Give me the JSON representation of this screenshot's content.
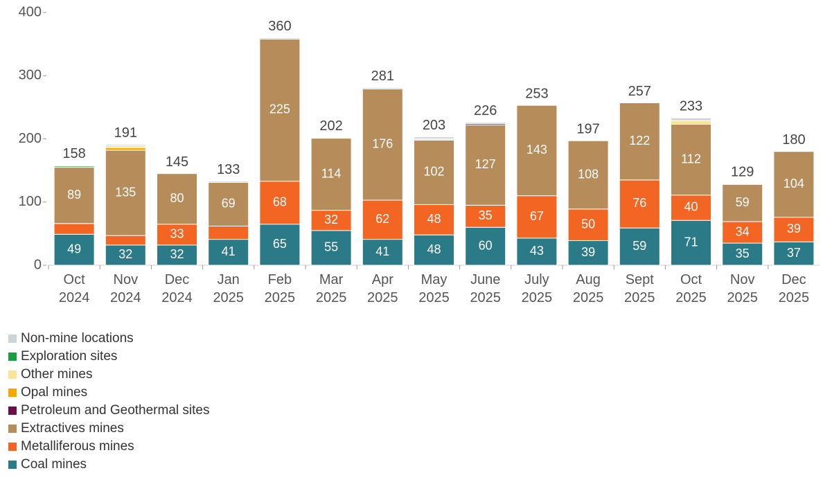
{
  "chart_data": {
    "type": "stacked_bar",
    "categories": [
      [
        "Oct",
        "2024"
      ],
      [
        "Nov",
        "2024"
      ],
      [
        "Dec",
        "2024"
      ],
      [
        "Jan",
        "2025"
      ],
      [
        "Feb",
        "2025"
      ],
      [
        "Mar",
        "2025"
      ],
      [
        "Apr",
        "2025"
      ],
      [
        "May",
        "2025"
      ],
      [
        "June",
        "2025"
      ],
      [
        "July",
        "2025"
      ],
      [
        "Aug",
        "2025"
      ],
      [
        "Sept",
        "2025"
      ],
      [
        "Oct",
        "2025"
      ],
      [
        "Nov",
        "2025"
      ],
      [
        "Dec",
        "2025"
      ]
    ],
    "series": [
      {
        "name": "Coal mines",
        "color": "#2b7a87",
        "values": [
          49,
          32,
          32,
          41,
          65,
          55,
          41,
          48,
          60,
          43,
          39,
          59,
          71,
          35,
          37
        ]
      },
      {
        "name": "Metalliferous mines",
        "color": "#f26522",
        "values": [
          17,
          15,
          33,
          21,
          68,
          32,
          62,
          48,
          35,
          67,
          50,
          76,
          40,
          34,
          39
        ]
      },
      {
        "name": "Extractives mines",
        "color": "#b58c5a",
        "values": [
          89,
          135,
          80,
          69,
          225,
          114,
          176,
          102,
          127,
          143,
          108,
          122,
          112,
          59,
          104
        ]
      },
      {
        "name": "Petroleum and Geothermal sites",
        "color": "#6b0f4a",
        "values": [
          0,
          0,
          0,
          0,
          0,
          0,
          0,
          0,
          2,
          0,
          0,
          0,
          0,
          0,
          0
        ]
      },
      {
        "name": "Opal mines",
        "color": "#f5a800",
        "values": [
          0,
          4,
          0,
          0,
          0,
          0,
          0,
          0,
          0,
          0,
          0,
          0,
          0,
          0,
          0
        ]
      },
      {
        "name": "Other mines",
        "color": "#fbe49a",
        "values": [
          0,
          3,
          0,
          0,
          0,
          0,
          0,
          2,
          0,
          0,
          0,
          0,
          6,
          0,
          0
        ]
      },
      {
        "name": "Exploration sites",
        "color": "#1a9e3f",
        "values": [
          2,
          0,
          0,
          0,
          0,
          0,
          0,
          0,
          0,
          0,
          0,
          0,
          0,
          0,
          0
        ]
      },
      {
        "name": "Non-mine locations",
        "color": "#ccd3d9",
        "values": [
          1,
          2,
          0,
          2,
          2,
          1,
          2,
          3,
          2,
          0,
          0,
          0,
          4,
          1,
          0
        ]
      }
    ],
    "totals": [
      158,
      191,
      145,
      133,
      360,
      202,
      281,
      203,
      226,
      253,
      197,
      257,
      233,
      129,
      180
    ],
    "ylim": [
      0,
      400
    ],
    "yticks": [
      0,
      100,
      200,
      300,
      400
    ],
    "grid": false
  }
}
